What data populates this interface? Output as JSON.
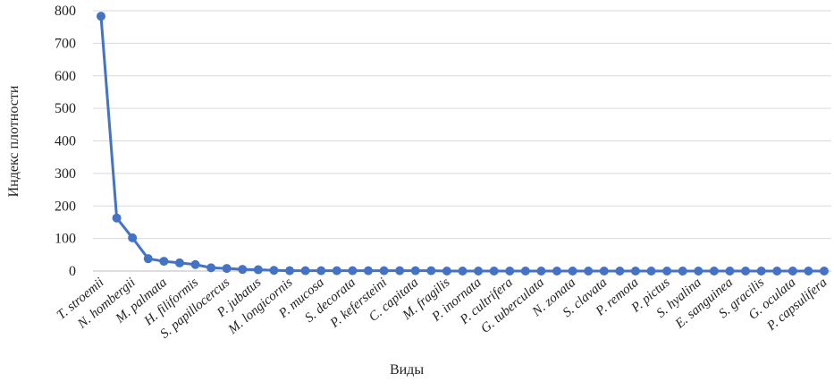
{
  "chart_data": {
    "type": "line",
    "x_label": "Виды",
    "y_label": "Индекс плотности",
    "categories": [
      "T. stroemii",
      null,
      "N. hombergii",
      null,
      "M. palmata",
      null,
      "H. filiformis",
      null,
      "S. papillocercus",
      null,
      "P. jubatus",
      null,
      "M. longicornis",
      null,
      "P. mucosa",
      null,
      "S. decorata",
      null,
      "P. kefersteini",
      null,
      "C. capitata",
      null,
      "M. fragilis",
      null,
      "P. inornata",
      null,
      "P. cultrifera",
      null,
      "G. tuberculata",
      null,
      "N. zonata",
      null,
      "S. clavata",
      null,
      "P. remota",
      null,
      "P. pictus",
      null,
      "S. hyalina",
      null,
      "E. sanguinea",
      null,
      "S. gracilis",
      null,
      "G. oculata",
      null,
      "P. capsulifera"
    ],
    "series": [
      {
        "name": "Индекс плотности",
        "color": "#4472c4",
        "values": [
          783,
          163,
          102,
          38,
          30,
          25,
          20,
          10,
          8,
          5,
          4,
          2,
          1,
          1,
          1,
          1,
          1,
          1,
          1,
          1,
          1,
          1,
          0,
          0,
          0,
          0,
          0,
          0,
          0,
          0,
          0,
          0,
          0,
          0,
          0,
          0,
          0,
          0,
          0,
          0,
          0,
          0,
          0,
          0,
          0,
          0,
          0
        ]
      }
    ],
    "ylim": [
      0,
      800
    ],
    "yticks": [
      0,
      100,
      200,
      300,
      400,
      500,
      600,
      700,
      800
    ],
    "grid": true
  }
}
